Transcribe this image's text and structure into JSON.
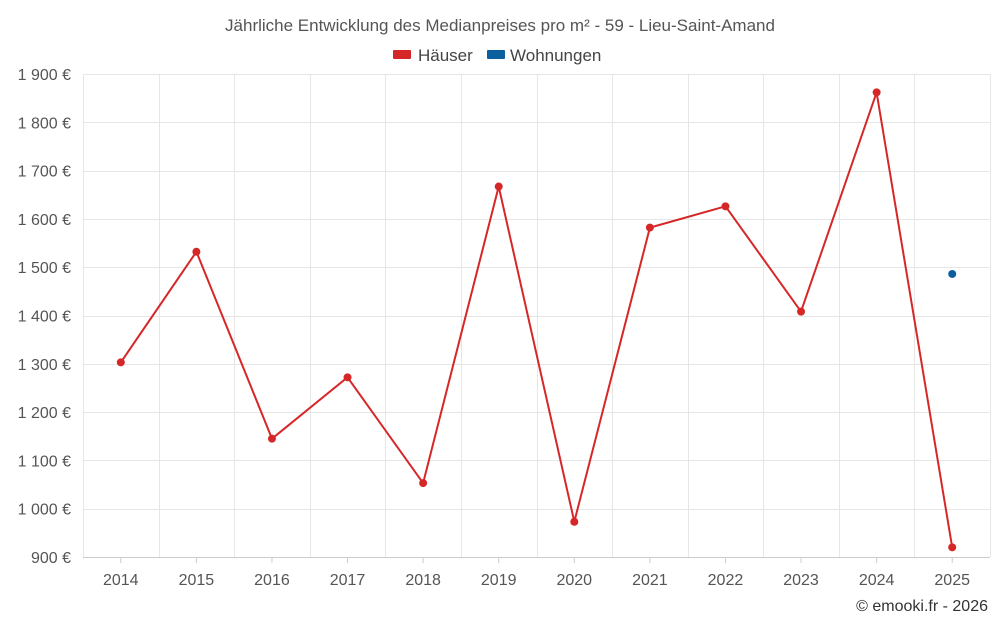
{
  "chart_data": {
    "type": "line",
    "title": "Jährliche Entwicklung des Medianpreises pro m² - 59 - Lieu-Saint-Amand",
    "categories": [
      "2014",
      "2015",
      "2016",
      "2017",
      "2018",
      "2019",
      "2020",
      "2021",
      "2022",
      "2023",
      "2024",
      "2025"
    ],
    "ylim": [
      900,
      1900
    ],
    "yticks": [
      900,
      1000,
      1100,
      1200,
      1300,
      1400,
      1500,
      1600,
      1700,
      1800,
      1900
    ],
    "ytick_labels": [
      "900 €",
      "1 000 €",
      "1 100 €",
      "1 200 €",
      "1 300 €",
      "1 400 €",
      "1 500 €",
      "1 600 €",
      "1 700 €",
      "1 800 €",
      "1 900 €"
    ],
    "grid": true,
    "legend_position": "top-center",
    "series": [
      {
        "name": "Häuser",
        "color": "#d62728",
        "values": [
          1303,
          1532,
          1145,
          1272,
          1053,
          1667,
          973,
          1582,
          1626,
          1408,
          1862,
          920
        ]
      },
      {
        "name": "Wohnungen",
        "color": "#0a5f9e",
        "values": [
          null,
          null,
          null,
          null,
          null,
          null,
          null,
          null,
          null,
          null,
          null,
          1486
        ]
      }
    ]
  },
  "credit": "© emooki.fr - 2026"
}
